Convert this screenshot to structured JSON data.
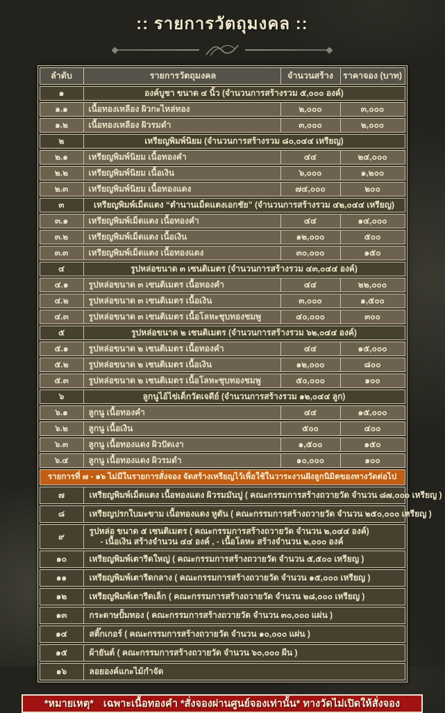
{
  "title": ":: รายการวัตถุมงคล ::",
  "colors": {
    "band_orange": "#c05e14",
    "note_red": "#a01310",
    "table_line_cream": "#cfc5a9",
    "text_cream": "#ece3c6",
    "row_item_brown": "#6d6150",
    "row_group_dark": "#46402f",
    "header_gray": "#55524a"
  },
  "table": {
    "headers": {
      "no": "ลำดับ",
      "item": "รายการวัตถุมงคล",
      "qty": "จำนวนสร้าง",
      "price": "ราคาจอง (บาท)"
    },
    "rows": [
      {
        "t": "head"
      },
      {
        "t": "group",
        "no": "๑",
        "label": "องค์บูชา ขนาด ๔ นิ้ว (จำนวนการสร้างรวม ๕,๐๐๐ องค์)"
      },
      {
        "t": "item",
        "no": "๑.๑",
        "label": "เนื้อทองเหลือง ผิวกะไหล่ทอง",
        "qty": "๒,๐๐๐",
        "price": "๓,๐๐๐"
      },
      {
        "t": "item",
        "no": "๑.๒",
        "label": "เนื้อทองเหลือง ผิวรมดำ",
        "qty": "๓,๐๐๐",
        "price": "๒,๐๐๐"
      },
      {
        "t": "group",
        "no": "๒",
        "label": "เหรียญพิมพ์นิยม (จำนวนการสร้างรวม ๘๐,๐๔๔ เหรียญ)"
      },
      {
        "t": "item",
        "no": "๒.๑",
        "label": "เหรียญพิมพ์นิยม เนื้อทองคำ",
        "qty": "๔๔",
        "price": "๒๔,๐๐๐"
      },
      {
        "t": "item",
        "no": "๒.๒",
        "label": "เหรียญพิมพ์นิยม เนื้อเงิน",
        "qty": "๖,๐๐๐",
        "price": "๑,๒๐๐"
      },
      {
        "t": "item",
        "no": "๒.๓",
        "label": "เหรียญพิมพ์นิยม เนื้อทองแดง",
        "qty": "๗๔,๐๐๐",
        "price": "๒๐๐"
      },
      {
        "t": "group",
        "no": "๓",
        "label": "เหรียญพิมพ์เม็ดแตง “ตำนานเม็ดแตงเอกชัย” (จำนวนการสร้างรวม ๔๒,๐๔๔ เหรียญ)"
      },
      {
        "t": "item",
        "no": "๓.๑",
        "label": "เหรียญพิมพ์เม็ดแตง เนื้อทองคำ",
        "qty": "๔๔",
        "price": "๑๔,๐๐๐"
      },
      {
        "t": "item",
        "no": "๓.๒",
        "label": "เหรียญพิมพ์เม็ดแตง เนื้อเงิน",
        "qty": "๑๒,๐๐๐",
        "price": "๕๐๐"
      },
      {
        "t": "item",
        "no": "๓.๓",
        "label": "เหรียญพิมพ์เม็ดแตง เนื้อทองแดง",
        "qty": "๓๐,๐๐๐",
        "price": "๑๕๐"
      },
      {
        "t": "group",
        "no": "๔",
        "label": "รูปหล่อขนาด ๓ เซนติเมตร (จำนวนการสร้างรวม ๔๓,๐๔๔ องค์)"
      },
      {
        "t": "item",
        "no": "๔.๑",
        "label": "รูปหล่อขนาด ๓ เซนติเมตร เนื้อทองคำ",
        "qty": "๔๔",
        "price": "๒๒,๐๐๐"
      },
      {
        "t": "item",
        "no": "๔.๒",
        "label": "รูปหล่อขนาด ๓ เซนติเมตร เนื้อเงิน",
        "qty": "๓,๐๐๐",
        "price": "๑,๕๐๐"
      },
      {
        "t": "item",
        "no": "๔.๓",
        "label": "รูปหล่อขนาด ๓ เซนติเมตร เนื้อโลหะชุบทองชมพู",
        "qty": "๔๐,๐๐๐",
        "price": "๓๐๐"
      },
      {
        "t": "group",
        "no": "๕",
        "label": "รูปหล่อขนาด ๒ เซนติเมตร (จำนวนการสร้างรวม ๖๒,๐๔๔ องค์)"
      },
      {
        "t": "item",
        "no": "๕.๑",
        "label": "รูปหล่อขนาด ๒ เซนติเมตร เนื้อทองคำ",
        "qty": "๔๔",
        "price": "๑๕,๐๐๐"
      },
      {
        "t": "item",
        "no": "๕.๒",
        "label": "รูปหล่อขนาด ๒ เซนติเมตร เนื้อเงิน",
        "qty": "๑๒,๐๐๐",
        "price": "๘๐๐"
      },
      {
        "t": "item",
        "no": "๕.๓",
        "label": "รูปหล่อขนาด ๒ เซนติเมตร เนื้อโลหะชุบทองชมพู",
        "qty": "๕๐,๐๐๐",
        "price": "๑๐๐"
      },
      {
        "t": "group",
        "no": "๖",
        "label": "ลูกนูไอ้ไข่เด็กวัดเจดีย์ (จำนวนการสร้างรวม ๑๒,๐๔๔ ลูก)"
      },
      {
        "t": "item",
        "no": "๖.๑",
        "label": "ลูกนู เนื้อทองคำ",
        "qty": "๔๔",
        "price": "๑๕,๐๐๐"
      },
      {
        "t": "item",
        "no": "๖.๒",
        "label": "ลูกนู เนื้อเงิน",
        "qty": "๕๐๐",
        "price": "๔๐๐"
      },
      {
        "t": "item",
        "no": "๖.๓",
        "label": "ลูกนู เนื้อทองแดง ผิวปัดเงา",
        "qty": "๑,๕๐๐",
        "price": "๑๕๐"
      },
      {
        "t": "item",
        "no": "๖.๔",
        "label": "ลูกนู เนื้อทองแดง ผิวรมดำ",
        "qty": "๑๐,๐๐๐",
        "price": "๑๐๐"
      },
      {
        "t": "band",
        "label": "รายการที่ ๗ - ๑๖ ไม่มีในรายการสั่งจอง จัดสร้างเหรียญไว้เพื่อใช้ในวาระงานฝังลูกนิมิตของทางวัดต่อไป"
      },
      {
        "t": "info",
        "no": "๗",
        "label": "เหรียญพิมพ์เม็ดแตง เนื้อทองแดง ผิวรมมันปู ( คณะกรรมการสร้างถวายวัด จำนวน ๘๗,๐๐๐ เหรียญ )"
      },
      {
        "t": "info",
        "no": "๘",
        "label": "เหรียญปรกใบมะขาม เนื้อทองแดง หูตัน ( คณะกรรมการสร้างถวายวัด จำนวน ๒๕๐,๐๐๐ เหรียญ )"
      },
      {
        "t": "info",
        "no": "๙",
        "label": "รูปหล่อ ขนาด ๕ เซนติเมตร ( คณะกรรมการสร้างถวายวัด จำนวน ๒,๐๔๔ องค์)",
        "label2": "- เนื้อเงิน สร้างจำนวน ๔๔ องค์ ,  - เนื้อโลหะ สร้างจำนวน ๒,๐๐๐ องค์"
      },
      {
        "t": "info",
        "no": "๑๐",
        "label": "เหรียญพิมพ์เตารีดใหญ่ ( คณะกรรมการสร้างถวายวัด จำนวน ๕,๕๐๐ เหรียญ )"
      },
      {
        "t": "info",
        "no": "๑๑",
        "label": "เหรียญพิมพ์เตารีดกลาง ( คณะกรรมการสร้างถวายวัด จำนวน ๑๕,๐๐๐ เหรียญ )"
      },
      {
        "t": "info",
        "no": "๑๒",
        "label": "เหรียญพิมพ์เตารีดเล็ก ( คณะกรรมการสร้างถวายวัด จำนวน ๒๘,๐๐๐ เหรียญ )"
      },
      {
        "t": "info",
        "no": "๑๓",
        "label": "กระดาษปั้มทอง ( คณะกรรมการสร้างถวายวัด จำนวน ๓๐,๐๐๐ แผ่น )"
      },
      {
        "t": "info",
        "no": "๑๔",
        "label": "สติ๊กเกอร์ ( คณะกรรมการสร้างถวายวัด จำนวน ๑๐,๐๐๐ แผ่น )"
      },
      {
        "t": "info",
        "no": "๑๕",
        "label": "ผ้ายันต์ ( คณะกรรมการสร้างถวายวัด จำนวน ๖๐,๐๐๐ ผืน )"
      },
      {
        "t": "info",
        "no": "๑๖",
        "label": "ลอยองค์แกะไม้กำจัด"
      }
    ]
  },
  "footer": {
    "note_prefix": "*หมายเหตุ*",
    "note": "เฉพาะเนื้อทองคำ *สั่งจองผ่านศูนย์จองเท่านั้น* ทางวัดไม่เปิดให้สั่งจอง"
  }
}
